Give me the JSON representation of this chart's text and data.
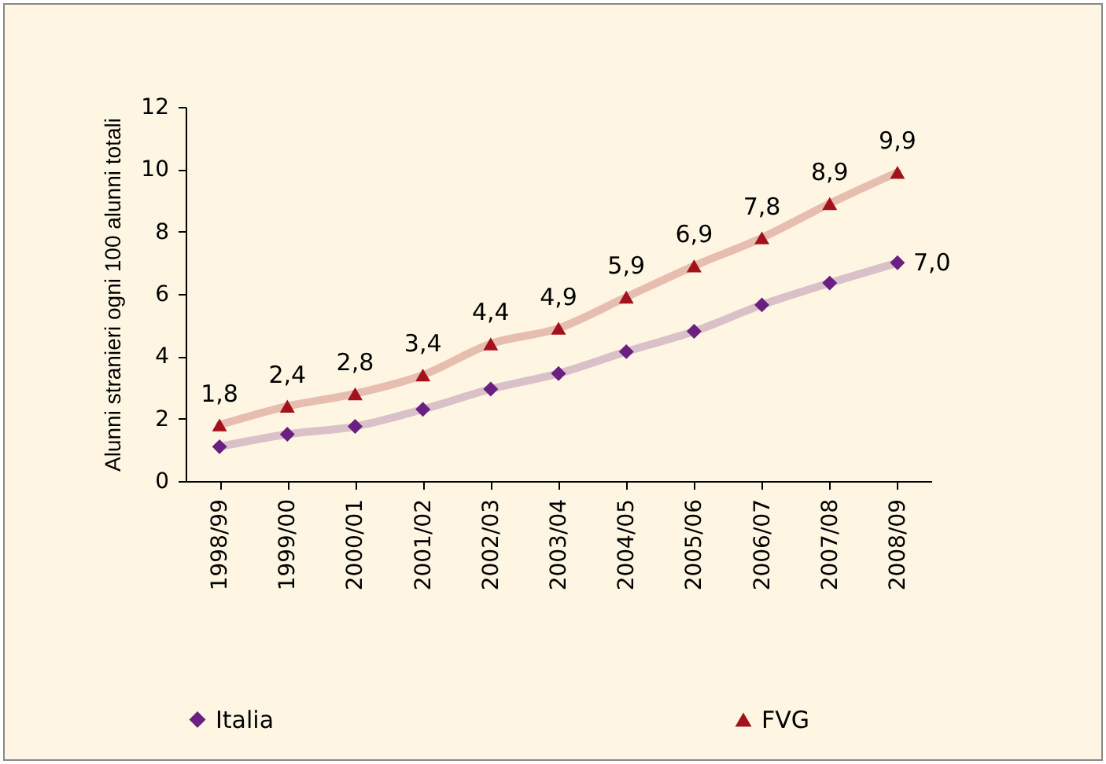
{
  "chart_data": {
    "type": "line",
    "ylabel": "Alunni stranieri ogni 100 alunni totali",
    "categories": [
      "1998/99",
      "1999/00",
      "2000/01",
      "2001/02",
      "2002/03",
      "2003/04",
      "2004/05",
      "2005/06",
      "2006/07",
      "2007/08",
      "2008/09"
    ],
    "series": [
      {
        "name": "Italia",
        "color": "#6a2080",
        "marker": "diamond",
        "values": [
          1.1,
          1.5,
          1.75,
          2.3,
          2.95,
          3.45,
          4.15,
          4.8,
          5.65,
          6.35,
          7.0
        ],
        "value_labels": [
          null,
          null,
          null,
          null,
          null,
          null,
          null,
          null,
          null,
          null,
          "7,0"
        ]
      },
      {
        "name": "FVG",
        "color": "#a3121c",
        "marker": "triangle",
        "values": [
          1.8,
          2.4,
          2.8,
          3.4,
          4.4,
          4.9,
          5.9,
          6.9,
          7.8,
          8.9,
          9.9
        ],
        "value_labels": [
          "1,8",
          "2,4",
          "2,8",
          "3,4",
          "4,4",
          "4,9",
          "5,9",
          "6,9",
          "7,8",
          "8,9",
          "9,9"
        ]
      }
    ],
    "ylim": [
      0,
      12
    ],
    "yticks": [
      0,
      2,
      4,
      6,
      8,
      10,
      12
    ],
    "grid": false,
    "legend": "bottom",
    "line_style": "solid"
  }
}
